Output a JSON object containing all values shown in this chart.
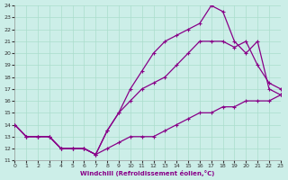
{
  "xlabel": "Windchill (Refroidissement éolien,°C)",
  "bg_color": "#cceee8",
  "line_color": "#880088",
  "grid_color": "#aaddcc",
  "line1_x": [
    0,
    1,
    2,
    3,
    4,
    5,
    6,
    7,
    8,
    9,
    10,
    11,
    12,
    13,
    14,
    15,
    16,
    17,
    18,
    19,
    20,
    21,
    22,
    23
  ],
  "line1_y": [
    14,
    13,
    13,
    13,
    12,
    12,
    12,
    11.5,
    12,
    12.5,
    13,
    13,
    13,
    13.5,
    14,
    14.5,
    15,
    15,
    15.5,
    15.5,
    16,
    16,
    16,
    16.5
  ],
  "line2_x": [
    0,
    1,
    2,
    3,
    4,
    5,
    6,
    7,
    8,
    9,
    10,
    11,
    12,
    13,
    14,
    15,
    16,
    17,
    18,
    19,
    20,
    21,
    22,
    23
  ],
  "line2_y": [
    14,
    13,
    13,
    13,
    12,
    12,
    12,
    11.5,
    13.5,
    15,
    16,
    17,
    17.5,
    18,
    19,
    20,
    21,
    21,
    21,
    20.5,
    21,
    19,
    17.5,
    17
  ],
  "line3_x": [
    0,
    1,
    2,
    3,
    4,
    5,
    6,
    7,
    8,
    9,
    10,
    11,
    12,
    13,
    14,
    15,
    16,
    17,
    18,
    19,
    20,
    21,
    22,
    23
  ],
  "line3_y": [
    14,
    13,
    13,
    13,
    12,
    12,
    12,
    11.5,
    13.5,
    15,
    17,
    18.5,
    20,
    21,
    21.5,
    22,
    22.5,
    24,
    23.5,
    21,
    20,
    21,
    17,
    16.5
  ],
  "xmin": 0,
  "xmax": 23,
  "ymin": 11,
  "ymax": 24,
  "xticks": [
    0,
    1,
    2,
    3,
    4,
    5,
    6,
    7,
    8,
    9,
    10,
    11,
    12,
    13,
    14,
    15,
    16,
    17,
    18,
    19,
    20,
    21,
    22,
    23
  ],
  "yticks": [
    11,
    12,
    13,
    14,
    15,
    16,
    17,
    18,
    19,
    20,
    21,
    22,
    23,
    24
  ]
}
